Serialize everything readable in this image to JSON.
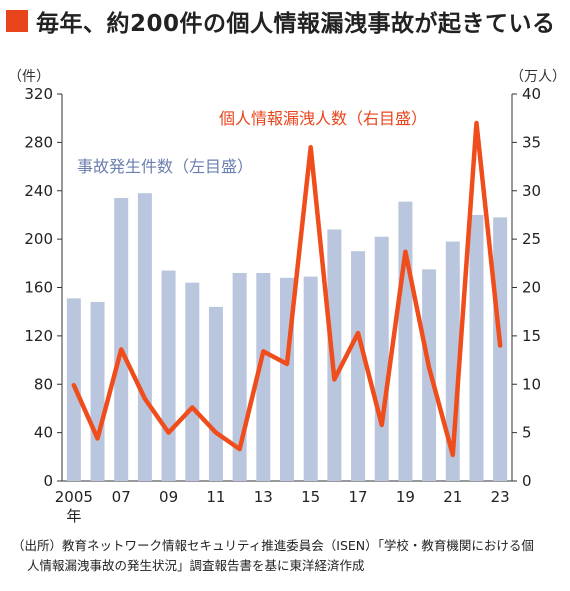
{
  "title": "毎年、約200件の個人情報漏洩事故が起きている",
  "colors": {
    "title_square": "#e8451c",
    "bar": "#b9c6de",
    "line": "#f04d1c",
    "bar_label": "#6b7fb0",
    "line_label": "#e8451c",
    "axis": "#333333",
    "grid": "#e6e6e6"
  },
  "unit_left": "（件）",
  "unit_right": "（万人）",
  "source_line1": "（出所）教育ネットワーク情報セキュリティ推進委員会（ISEN）「学校・教育機関における個",
  "source_line2": "人情報漏洩事故の発生状況」調査報告書を基に東洋経済作成",
  "chart_data": {
    "type": "bar",
    "title": "毎年、約200件の個人情報漏洩事故が起きている",
    "categories": [
      "2005",
      "2006",
      "2007",
      "2008",
      "2009",
      "2010",
      "2011",
      "2012",
      "2013",
      "2014",
      "2015",
      "2016",
      "2017",
      "2018",
      "2019",
      "2020",
      "2021",
      "2022",
      "2023"
    ],
    "x_tick_labels": [
      "2005",
      "",
      "07",
      "",
      "09",
      "",
      "11",
      "",
      "13",
      "",
      "15",
      "",
      "17",
      "",
      "19",
      "",
      "21",
      "",
      "23"
    ],
    "x_first_suffix": "年",
    "ylim_left": [
      0,
      320
    ],
    "yticks_left": [
      "0",
      "40",
      "80",
      "120",
      "160",
      "200",
      "240",
      "280",
      "320"
    ],
    "ylim_right": [
      0,
      40
    ],
    "yticks_right": [
      "0",
      "5",
      "10",
      "15",
      "20",
      "25",
      "30",
      "35",
      "40"
    ],
    "grid": false,
    "series": [
      {
        "name": "事故発生件数（左目盛）",
        "type": "bar",
        "axis": "left",
        "values": [
          151,
          148,
          234,
          238,
          174,
          164,
          144,
          172,
          172,
          168,
          169,
          208,
          190,
          202,
          231,
          175,
          198,
          220,
          218
        ]
      },
      {
        "name": "個人情報漏洩人数（右目盛）",
        "type": "line",
        "axis": "right",
        "values": [
          9.9,
          4.4,
          13.6,
          8.5,
          5.0,
          7.6,
          5.0,
          3.3,
          13.4,
          12.1,
          34.5,
          10.5,
          15.3,
          5.8,
          23.7,
          11.7,
          2.7,
          37.0,
          14.0
        ]
      }
    ]
  }
}
